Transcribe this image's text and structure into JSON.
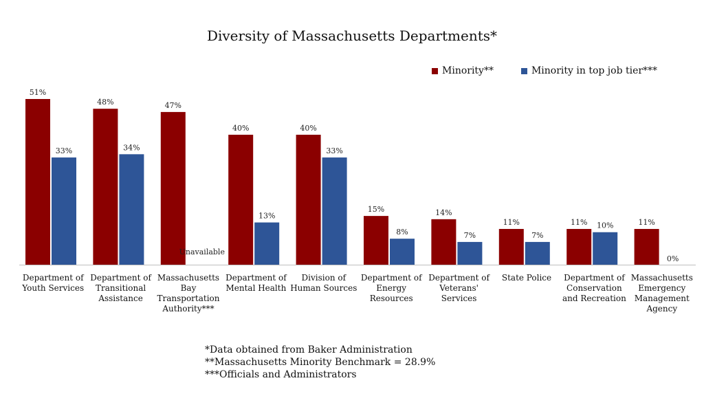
{
  "chart_data": {
    "type": "bar",
    "title": "Diversity of Massachusetts Departments*",
    "categories": [
      [
        "Department of",
        "Youth Services"
      ],
      [
        "Department of",
        "Transitional",
        "Assistance"
      ],
      [
        "Massachusetts",
        "Bay",
        "Transportation",
        "Authority***"
      ],
      [
        "Department of",
        "Mental Health"
      ],
      [
        "Division of",
        "Human Sources"
      ],
      [
        "Department of",
        "Energy",
        "Resources"
      ],
      [
        "Department of",
        "Veterans'",
        "Services"
      ],
      [
        "State Police"
      ],
      [
        "Department of",
        "Conservation",
        "and Recreation"
      ],
      [
        "Massachusetts",
        "Emergency",
        "Management",
        "Agency"
      ]
    ],
    "series": [
      {
        "name": "Minority**",
        "color": "#8b0000",
        "values": [
          51,
          48,
          47,
          40,
          40,
          15,
          14,
          11,
          11,
          11
        ],
        "labels": [
          "51%",
          "48%",
          "47%",
          "40%",
          "40%",
          "15%",
          "14%",
          "11%",
          "11%",
          "11%"
        ]
      },
      {
        "name": "Minority in top job tier***",
        "color": "#2e5597",
        "values": [
          33,
          34,
          null,
          13,
          33,
          8,
          7,
          7,
          10,
          0
        ],
        "labels": [
          "33%",
          "34%",
          "Unavailable",
          "13%",
          "33%",
          "8%",
          "7%",
          "7%",
          "10%",
          "0%"
        ]
      }
    ],
    "ylim": [
      0,
      51
    ],
    "grid": false,
    "legend": "top-right"
  },
  "footnotes": [
    "*Data obtained from Baker Administration",
    "**Massachusetts Minority Benchmark = 28.9%",
    "***Officials and Administrators"
  ]
}
